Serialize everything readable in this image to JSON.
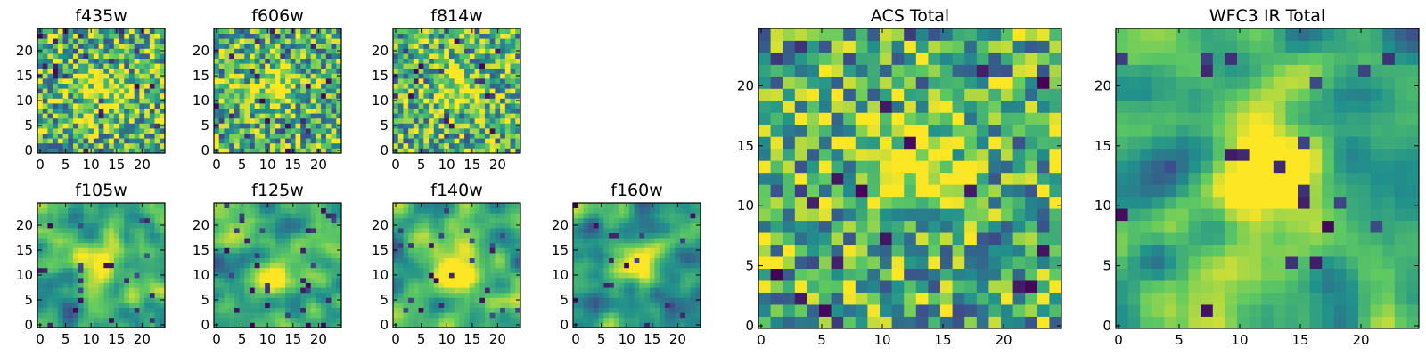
{
  "chart_data": [
    {
      "type": "heatmap",
      "title": "f435w",
      "size": 25,
      "xticks": [
        0,
        5,
        10,
        15,
        20
      ],
      "yticks": [
        0,
        5,
        10,
        15,
        20
      ],
      "xlim": [
        0,
        25
      ],
      "ylim": [
        0,
        25
      ],
      "colormap": "viridis",
      "peak": [
        12,
        12
      ],
      "smoothness": "noisy"
    },
    {
      "type": "heatmap",
      "title": "f606w",
      "size": 25,
      "xticks": [
        0,
        5,
        10,
        15,
        20
      ],
      "yticks": [
        0,
        5,
        10,
        15,
        20
      ],
      "xlim": [
        0,
        25
      ],
      "ylim": [
        0,
        25
      ],
      "colormap": "viridis",
      "peak": [
        12,
        13
      ],
      "smoothness": "noisy"
    },
    {
      "type": "heatmap",
      "title": "f814w",
      "size": 25,
      "xticks": [
        0,
        5,
        10,
        15,
        20
      ],
      "yticks": [
        0,
        5,
        10,
        15,
        20
      ],
      "xlim": [
        0,
        25
      ],
      "ylim": [
        0,
        25
      ],
      "colormap": "viridis",
      "peak": [
        12,
        13
      ],
      "smoothness": "noisy"
    },
    {
      "type": "heatmap",
      "title": "f105w",
      "size": 25,
      "xticks": [
        0,
        5,
        10,
        15,
        20
      ],
      "yticks": [
        0,
        5,
        10,
        15,
        20
      ],
      "xlim": [
        0,
        25
      ],
      "ylim": [
        0,
        25
      ],
      "colormap": "viridis",
      "peak": [
        12,
        12
      ],
      "smoothness": "smooth"
    },
    {
      "type": "heatmap",
      "title": "f125w",
      "size": 25,
      "xticks": [
        0,
        5,
        10,
        15,
        20
      ],
      "yticks": [
        0,
        5,
        10,
        15,
        20
      ],
      "xlim": [
        0,
        25
      ],
      "ylim": [
        0,
        25
      ],
      "colormap": "viridis",
      "peak": [
        12,
        10
      ],
      "smoothness": "smooth"
    },
    {
      "type": "heatmap",
      "title": "f140w",
      "size": 25,
      "xticks": [
        0,
        5,
        10,
        15,
        20
      ],
      "yticks": [
        0,
        5,
        10,
        15,
        20
      ],
      "xlim": [
        0,
        25
      ],
      "ylim": [
        0,
        25
      ],
      "colormap": "viridis",
      "peak": [
        12,
        11
      ],
      "smoothness": "smooth"
    },
    {
      "type": "heatmap",
      "title": "f160w",
      "size": 25,
      "xticks": [
        0,
        5,
        10,
        15,
        20
      ],
      "yticks": [
        0,
        5,
        10,
        15,
        20
      ],
      "xlim": [
        0,
        25
      ],
      "ylim": [
        0,
        25
      ],
      "colormap": "viridis",
      "peak": [
        13,
        13
      ],
      "smoothness": "smooth"
    },
    {
      "type": "heatmap",
      "title": "ACS Total",
      "size": 25,
      "xticks": [
        0,
        5,
        10,
        15,
        20
      ],
      "yticks": [
        0,
        5,
        10,
        15,
        20
      ],
      "xlim": [
        0,
        25
      ],
      "ylim": [
        0,
        25
      ],
      "colormap": "viridis",
      "peak": [
        12,
        13
      ],
      "smoothness": "noisy"
    },
    {
      "type": "heatmap",
      "title": "WFC3 IR Total",
      "size": 25,
      "xticks": [
        0,
        5,
        10,
        15,
        20
      ],
      "yticks": [
        0,
        5,
        10,
        15,
        20
      ],
      "xlim": [
        0,
        25
      ],
      "ylim": [
        0,
        25
      ],
      "colormap": "viridis",
      "peak": [
        12,
        12
      ],
      "smoothness": "smooth"
    }
  ],
  "colors": {
    "viridis": [
      "#440154",
      "#3b528b",
      "#21918c",
      "#5ec962",
      "#fde725"
    ]
  }
}
